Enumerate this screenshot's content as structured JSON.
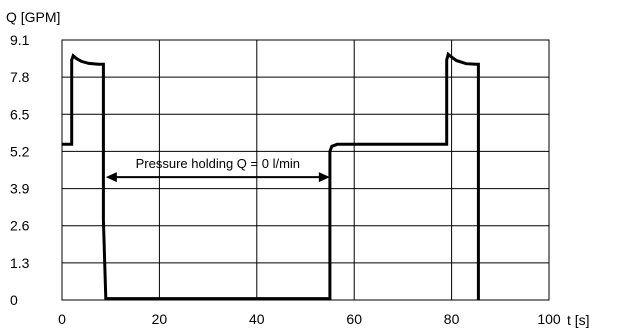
{
  "chart_data": {
    "type": "line",
    "ylabel": "Q [GPM]",
    "xlabel": "t [s]",
    "xlim": [
      0,
      100
    ],
    "ylim": [
      0,
      9.1
    ],
    "xticks": [
      0,
      20,
      40,
      60,
      80,
      100
    ],
    "xtick_labels": [
      "0",
      "20",
      "40",
      "60",
      "80",
      "100"
    ],
    "yticks": [
      0,
      1.3,
      2.6,
      3.9,
      5.2,
      6.5,
      7.8,
      9.1
    ],
    "ytick_labels": [
      "0",
      "1.3",
      "2.6",
      "3.9",
      "5.2",
      "6.5",
      "7.8",
      "9.1"
    ],
    "grid": true,
    "annotation": {
      "text": "Pressure holding Q = 0 l/min",
      "x_start": 9,
      "x_end": 55,
      "y": 4.3
    },
    "series": [
      {
        "points": [
          [
            0,
            5.45
          ],
          [
            2.0,
            5.45
          ],
          [
            2.0,
            8.4
          ],
          [
            2.3,
            8.55
          ],
          [
            3.0,
            8.45
          ],
          [
            4.0,
            8.35
          ],
          [
            5.5,
            8.28
          ],
          [
            7.5,
            8.25
          ],
          [
            8.5,
            8.25
          ],
          [
            8.5,
            2.8
          ],
          [
            9.0,
            0.05
          ],
          [
            55.0,
            0.05
          ],
          [
            55.0,
            5.2
          ],
          [
            55.4,
            5.38
          ],
          [
            56.5,
            5.45
          ],
          [
            79.0,
            5.45
          ],
          [
            79.0,
            8.4
          ],
          [
            79.3,
            8.6
          ],
          [
            80.0,
            8.5
          ],
          [
            81.0,
            8.38
          ],
          [
            83.0,
            8.27
          ],
          [
            85.0,
            8.25
          ],
          [
            85.5,
            8.25
          ],
          [
            85.5,
            0
          ]
        ]
      }
    ]
  }
}
